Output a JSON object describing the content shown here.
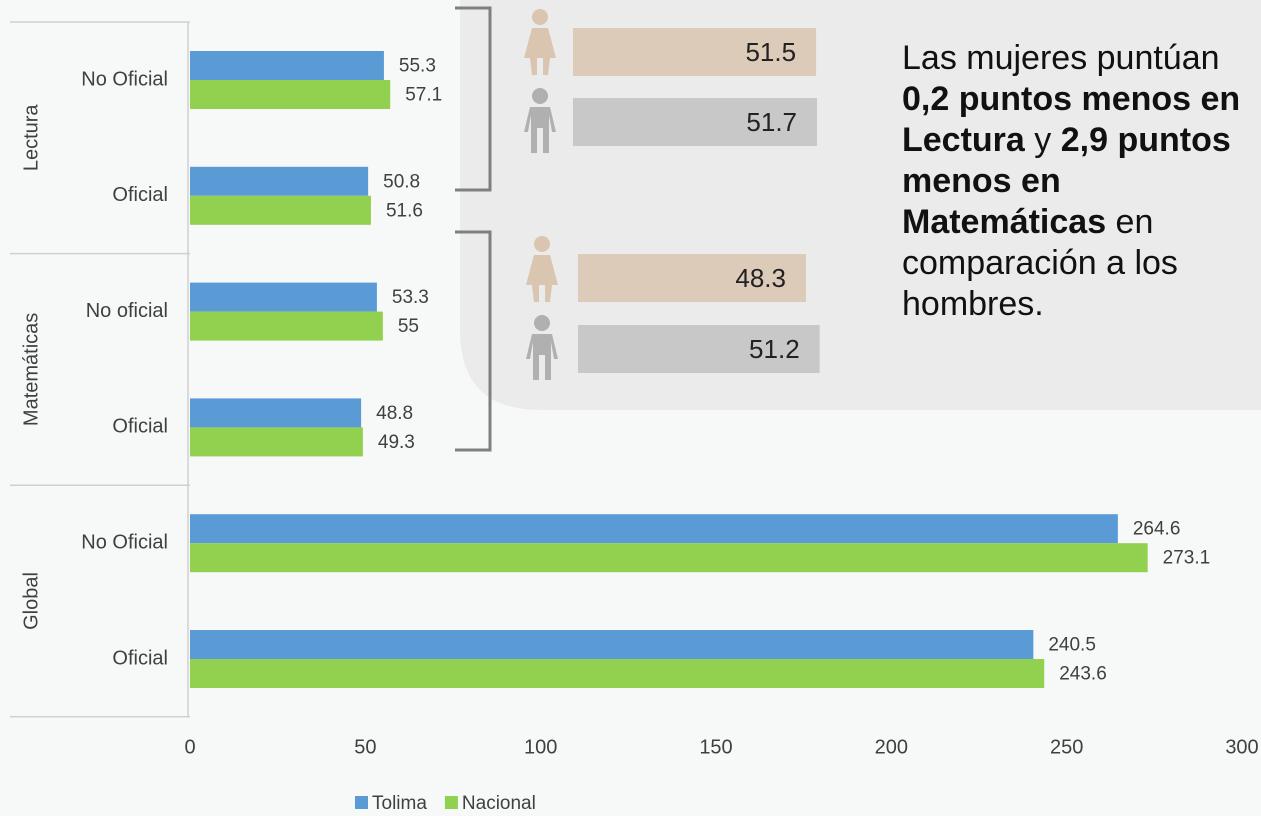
{
  "chart_data": {
    "type": "bar",
    "groups": [
      {
        "name": "Lectura",
        "categories": [
          "No Oficial",
          "Oficial"
        ]
      },
      {
        "name": "Matemáticas",
        "categories": [
          "No oficial",
          "Oficial"
        ]
      },
      {
        "name": "Global",
        "categories": [
          "No Oficial",
          "Oficial"
        ]
      }
    ],
    "series": [
      {
        "name": "Tolima",
        "color": "#5b9bd5",
        "values": [
          55.3,
          50.8,
          53.3,
          48.8,
          264.6,
          240.5
        ]
      },
      {
        "name": "Nacional",
        "color": "#92d050",
        "values": [
          57.1,
          51.6,
          55,
          49.3,
          273.1,
          243.6
        ]
      }
    ],
    "xlim": [
      0,
      300
    ],
    "xticks": [
      0,
      50,
      100,
      150,
      200,
      250,
      300
    ],
    "legend": "bottom"
  },
  "gender_comparison": {
    "type": "bar",
    "series": [
      {
        "color": "#dccbb8",
        "values": [
          51.5,
          48.3
        ]
      },
      {
        "color": "#c8c8c8",
        "values": [
          51.7,
          51.2
        ]
      }
    ]
  },
  "note": [
    {
      "text": "Las mujeres puntúan ",
      "bold": false
    },
    {
      "text": "0,2 puntos menos en Lectura",
      "bold": true
    },
    {
      "text": " y ",
      "bold": false
    },
    {
      "text": "2,9 puntos menos en Matemáticas",
      "bold": true
    },
    {
      "text": " en comparación a los hombres.",
      "bold": false
    }
  ]
}
